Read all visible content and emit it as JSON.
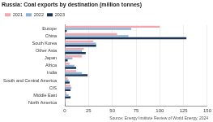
{
  "chart_data": {
    "type": "bar",
    "orientation": "horizontal",
    "title": "Russia: Coal exports by destination (million tonnes)",
    "source": "Source: Energy Institute Review of World Energy, 2024",
    "categories": [
      "Europe",
      "China",
      "South Korea",
      "Other Asia",
      "Japan",
      "Africa",
      "India",
      "South and Central America",
      "CIS",
      "Middle East",
      "North America"
    ],
    "series": [
      {
        "name": "2021",
        "color": "#f2a7ae",
        "values": [
          100,
          55,
          30,
          20,
          18,
          5,
          12,
          3,
          6,
          2,
          0.5
        ]
      },
      {
        "name": "2022",
        "color": "#8db3d6",
        "values": [
          70,
          67,
          33,
          18,
          8,
          10,
          18,
          4,
          7,
          4,
          0.5
        ]
      },
      {
        "name": "2023",
        "color": "#1d3553",
        "values": [
          2,
          128,
          33,
          22,
          3,
          12,
          24,
          5,
          6,
          6,
          0.5
        ]
      }
    ],
    "xlim": [
      0,
      150
    ],
    "xticks": [
      0,
      25,
      50,
      75,
      100,
      125,
      150
    ],
    "grid": true,
    "legend": "top left"
  }
}
